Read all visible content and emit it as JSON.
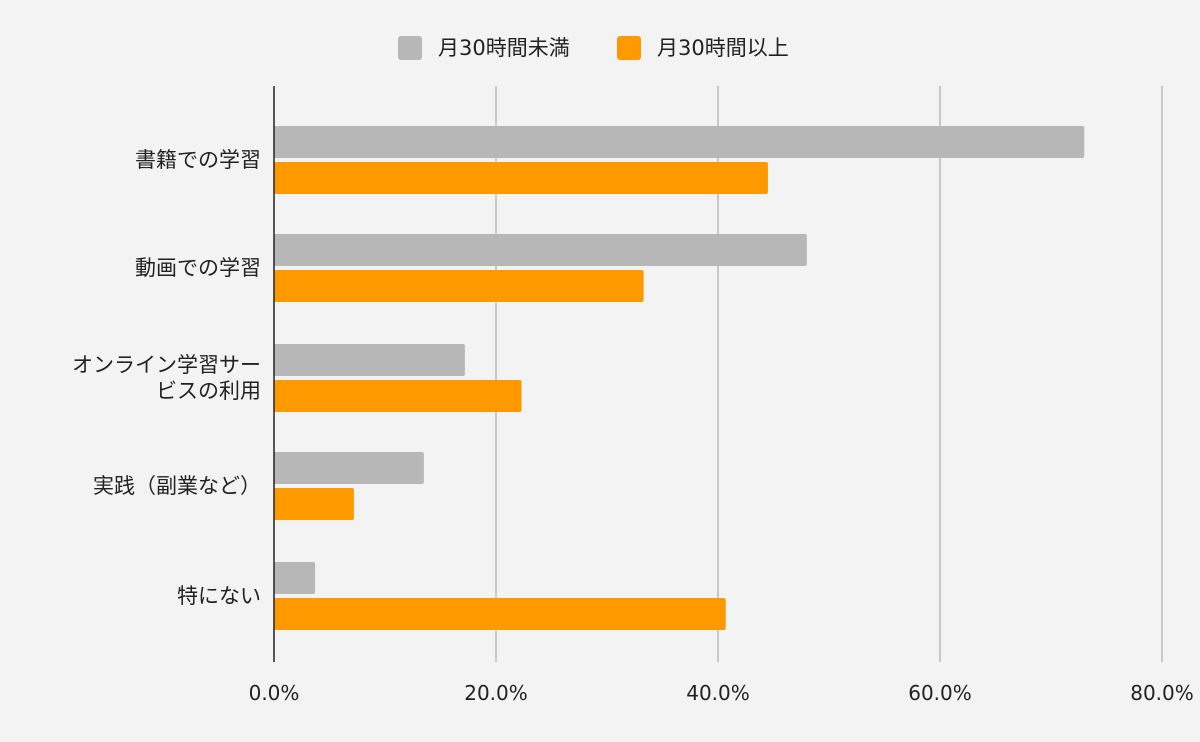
{
  "chart_data": {
    "type": "bar",
    "orientation": "horizontal",
    "categories": [
      [
        "書籍での学習"
      ],
      [
        "動画での学習"
      ],
      [
        "オンライン学習サー",
        "ビスの利用"
      ],
      [
        "実践（副業など）"
      ],
      [
        "特にない"
      ]
    ],
    "series": [
      {
        "name": "月30時間未満",
        "color": "#b7b7b7",
        "values": [
          73.0,
          48.0,
          17.2,
          13.5,
          3.7
        ]
      },
      {
        "name": "月30時間以上",
        "color": "#ff9900",
        "values": [
          44.5,
          33.3,
          22.3,
          7.2,
          40.7
        ]
      }
    ],
    "x_ticks": [
      "0.0%",
      "20.0%",
      "40.0%",
      "60.0%",
      "80.0%"
    ],
    "xlim": [
      0,
      80
    ],
    "tick_step": 20,
    "title": "",
    "xlabel": "",
    "ylabel": "",
    "grid": true,
    "legend_position": "top-center"
  }
}
